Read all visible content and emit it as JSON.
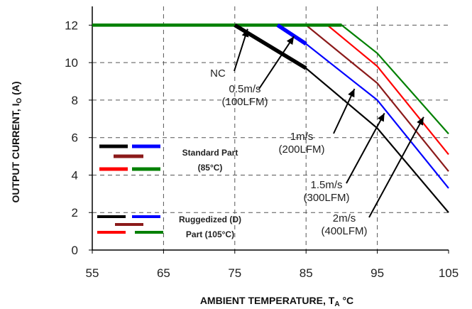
{
  "chart_data": {
    "type": "line",
    "xlabel_main": "AMBIENT TEMPERATURE, T",
    "xlabel_sub": "A",
    "xlabel_unit": " °C",
    "ylabel_main": "OUTPUT CURRENT, I",
    "ylabel_sub": "O",
    "ylabel_unit": " (A)",
    "xlim": [
      55,
      105
    ],
    "ylim": [
      0,
      13
    ],
    "x_ticks": [
      "55",
      "65",
      "75",
      "85",
      "95",
      "105"
    ],
    "y_ticks": [
      "0",
      "2",
      "4",
      "6",
      "8",
      "10",
      "12"
    ],
    "grid": "dashed",
    "series": [
      {
        "name": "NC",
        "color": "#000000",
        "points": [
          [
            55,
            12
          ],
          [
            75,
            12
          ],
          [
            85,
            9.7
          ],
          [
            95,
            6.5
          ],
          [
            105,
            2
          ]
        ]
      },
      {
        "name": "0.5m/s (100LFM)",
        "color": "#0000ff",
        "points": [
          [
            55,
            12
          ],
          [
            81,
            12
          ],
          [
            85,
            11
          ],
          [
            95,
            8
          ],
          [
            105,
            3.3
          ]
        ]
      },
      {
        "name": "1m/s (200LFM)",
        "color": "#8b1a1a",
        "points": [
          [
            55,
            12
          ],
          [
            85,
            12
          ],
          [
            95,
            8.9
          ],
          [
            105,
            4.2
          ]
        ]
      },
      {
        "name": "1.5m/s (300LFM)",
        "color": "#ff0000",
        "points": [
          [
            55,
            12
          ],
          [
            88,
            12
          ],
          [
            95,
            9.8
          ],
          [
            105,
            5.1
          ]
        ]
      },
      {
        "name": "2m/s (400LFM)",
        "color": "#008000",
        "points": [
          [
            55,
            12
          ],
          [
            90,
            12
          ],
          [
            95,
            10.5
          ],
          [
            105,
            6.2
          ]
        ]
      }
    ],
    "annotations": [
      {
        "lines": [
          "NC"
        ],
        "arrow_to": [
          76.8,
          11.8
        ]
      },
      {
        "lines": [
          "0.5m/s",
          "(100LFM)"
        ],
        "arrow_to": [
          83.3,
          11.4
        ]
      },
      {
        "lines": [
          "1m/s",
          "(200LFM)"
        ],
        "arrow_to": [
          91.8,
          8.6
        ]
      },
      {
        "lines": [
          "1.5m/s",
          "(300LFM)"
        ],
        "arrow_to": [
          96,
          7.3
        ]
      },
      {
        "lines": [
          "2m/s",
          "(400LFM)"
        ],
        "arrow_to": [
          101.5,
          7.1
        ]
      }
    ],
    "legend_notes": [
      {
        "lines": [
          "Standard Part",
          "(85°C)"
        ]
      },
      {
        "lines": [
          "Ruggedized (D)",
          "Part (105°C)"
        ]
      }
    ]
  }
}
